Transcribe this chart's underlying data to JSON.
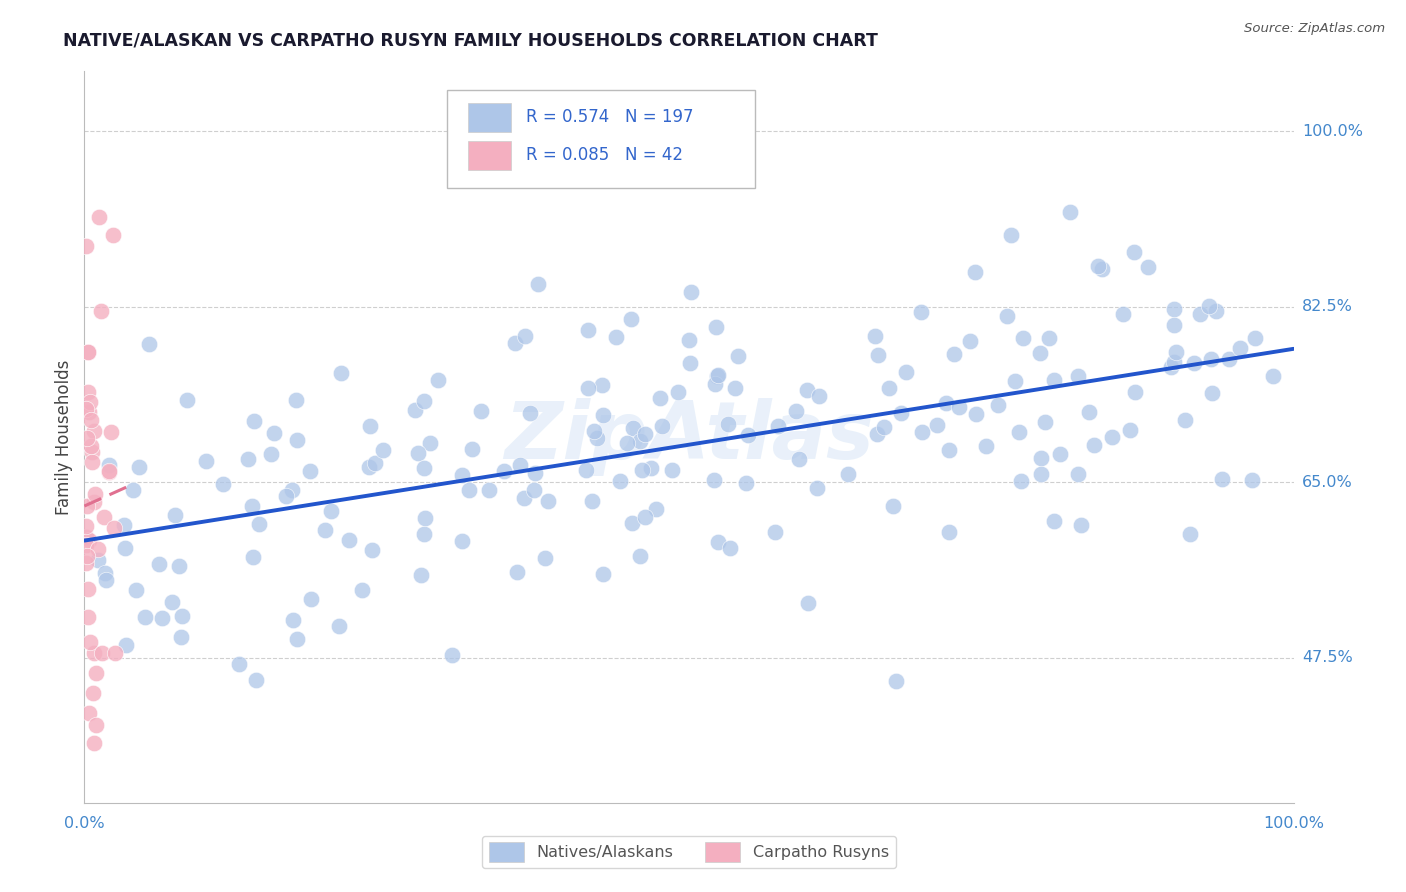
{
  "title": "NATIVE/ALASKAN VS CARPATHO RUSYN FAMILY HOUSEHOLDS CORRELATION CHART",
  "source": "Source: ZipAtlas.com",
  "ylabel": "Family Households",
  "yaxis_labels": [
    "100.0%",
    "82.5%",
    "65.0%",
    "47.5%"
  ],
  "yaxis_values": [
    1.0,
    0.825,
    0.65,
    0.475
  ],
  "xlim": [
    0.0,
    1.0
  ],
  "ylim": [
    0.33,
    1.06
  ],
  "blue_R": 0.574,
  "blue_N": 197,
  "pink_R": 0.085,
  "pink_N": 42,
  "blue_scatter_color": "#aec6e8",
  "pink_scatter_color": "#f4afc0",
  "blue_line_color": "#2255cc",
  "pink_line_color": "#e07090",
  "title_color": "#1a1a2e",
  "axis_label_color": "#4488cc",
  "legend_text_color": "#3366cc",
  "watermark": "ZipAtlas",
  "watermark_color": "#b0ccee",
  "grid_color": "#bbbbbb",
  "background_color": "#ffffff",
  "source_color": "#555555",
  "ylabel_color": "#444444",
  "blue_line_start": 0.0,
  "blue_line_end": 1.0,
  "pink_line_start": 0.0,
  "pink_line_end": 0.04
}
